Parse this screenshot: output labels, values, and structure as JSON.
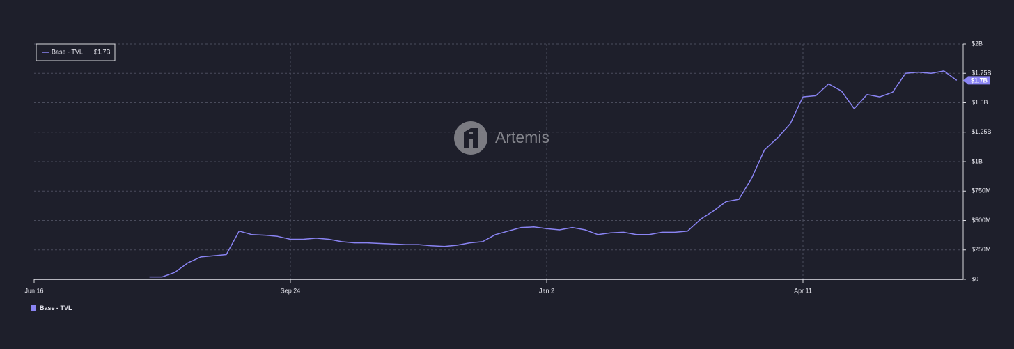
{
  "chart_data": {
    "type": "line",
    "watermark": "Artemis",
    "x": [
      "Jun 16",
      "Jun 21",
      "Jun 26",
      "Jul 1",
      "Jul 6",
      "Jul 11",
      "Jul 16",
      "Jul 21",
      "Jul 26",
      "Jul 31",
      "Aug 5",
      "Aug 10",
      "Aug 15",
      "Aug 20",
      "Aug 25",
      "Aug 30",
      "Sep 4",
      "Sep 9",
      "Sep 14",
      "Sep 19",
      "Sep 24",
      "Sep 29",
      "Oct 4",
      "Oct 9",
      "Oct 14",
      "Oct 19",
      "Oct 24",
      "Oct 29",
      "Nov 3",
      "Nov 8",
      "Nov 13",
      "Nov 18",
      "Nov 23",
      "Nov 28",
      "Dec 3",
      "Dec 8",
      "Dec 13",
      "Dec 18",
      "Dec 23",
      "Dec 28",
      "Jan 2",
      "Jan 7",
      "Jan 12",
      "Jan 17",
      "Jan 22",
      "Jan 27",
      "Feb 1",
      "Feb 6",
      "Feb 11",
      "Feb 16",
      "Feb 21",
      "Feb 26",
      "Mar 2",
      "Mar 7",
      "Mar 12",
      "Mar 17",
      "Mar 22",
      "Mar 27",
      "Apr 1",
      "Apr 6",
      "Apr 11",
      "Apr 16",
      "Apr 21",
      "Apr 26",
      "May 1",
      "May 6",
      "May 11",
      "May 16",
      "May 21",
      "May 26",
      "May 31",
      "Jun 5",
      "Jun 10"
    ],
    "series": [
      {
        "name": "Base - TVL",
        "color": "#8a84f3",
        "values": [
          null,
          null,
          null,
          null,
          null,
          null,
          null,
          null,
          null,
          20000000,
          20000000,
          60000000,
          140000000,
          190000000,
          200000000,
          210000000,
          410000000,
          380000000,
          375000000,
          365000000,
          340000000,
          340000000,
          350000000,
          340000000,
          320000000,
          310000000,
          310000000,
          305000000,
          300000000,
          295000000,
          295000000,
          285000000,
          280000000,
          290000000,
          310000000,
          320000000,
          380000000,
          410000000,
          440000000,
          445000000,
          430000000,
          420000000,
          440000000,
          420000000,
          380000000,
          395000000,
          400000000,
          380000000,
          380000000,
          400000000,
          400000000,
          410000000,
          510000000,
          580000000,
          660000000,
          680000000,
          860000000,
          1100000000,
          1200000000,
          1320000000,
          1550000000,
          1560000000,
          1660000000,
          1600000000,
          1450000000,
          1570000000,
          1550000000,
          1590000000,
          1750000000,
          1760000000,
          1750000000,
          1770000000,
          1690000000
        ],
        "current": {
          "value": 1690000000,
          "label": "$1.7B"
        }
      }
    ],
    "xticks": [
      "Jun 16",
      "Sep 24",
      "Jan 2",
      "Apr 11"
    ],
    "ylim": [
      0,
      2000000000
    ],
    "yticks": [
      {
        "value": 0,
        "label": "$0"
      },
      {
        "value": 250000000,
        "label": "$250M"
      },
      {
        "value": 500000000,
        "label": "$500M"
      },
      {
        "value": 750000000,
        "label": "$750M"
      },
      {
        "value": 1000000000,
        "label": "$1B"
      },
      {
        "value": 1250000000,
        "label": "$1.25B"
      },
      {
        "value": 1500000000,
        "label": "$1.5B"
      },
      {
        "value": 1750000000,
        "label": "$1.75B"
      },
      {
        "value": 2000000000,
        "label": "$2B"
      }
    ],
    "grid": true
  }
}
